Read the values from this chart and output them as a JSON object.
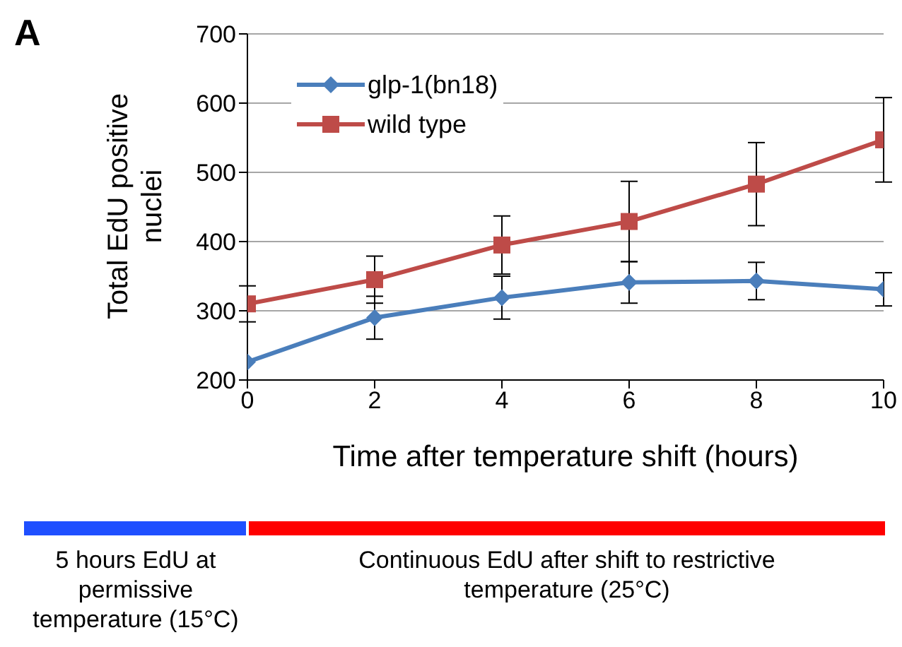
{
  "chart_data": {
    "type": "line",
    "title": "A",
    "xlabel": "Time after temperature shift (hours)",
    "ylabel": "Total EdU positive nuclei",
    "x": [
      0,
      2,
      4,
      6,
      8,
      10
    ],
    "series": [
      {
        "name": "glp-1(bn18)",
        "color": "#4a7ebb",
        "marker": "diamond",
        "values": [
          226,
          290,
          319,
          341,
          343,
          331
        ],
        "errors": [
          null,
          31,
          31,
          30,
          27,
          24
        ]
      },
      {
        "name": "wild type",
        "color": "#be4b48",
        "marker": "square",
        "values": [
          310,
          345,
          395,
          429,
          483,
          547
        ],
        "errors": [
          26,
          34,
          42,
          58,
          60,
          61
        ]
      }
    ],
    "xlim": [
      0,
      10
    ],
    "xticks": [
      0,
      2,
      4,
      6,
      8,
      10
    ],
    "ylim": [
      200,
      700
    ],
    "yticks": [
      200,
      300,
      400,
      500,
      600,
      700
    ],
    "grid": "y",
    "legend": "top left",
    "annotations": [
      "5 hours EdU at permissive temperature (15°C)",
      "Continuous EdU after shift to restrictive temperature (25°C)"
    ]
  }
}
